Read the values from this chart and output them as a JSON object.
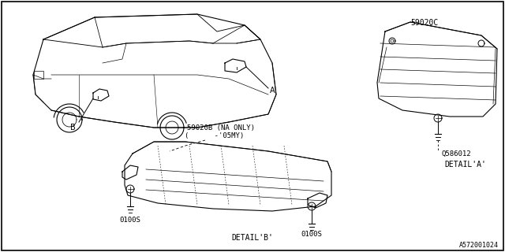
{
  "background_color": "#ffffff",
  "border_color": "#000000",
  "line_color": "#000000",
  "text_color": "#000000",
  "watermark": "A572001024",
  "label_A": "A",
  "label_B": "B",
  "label_59020B_line1": "59020B (NA ONLY)",
  "label_59020B_line2": "(      -'05MY)",
  "label_59020C": "59020C",
  "label_detail_a": "DETAIL'A'",
  "label_Q586012": "Q586012",
  "label_detail_b": "DETAIL'B'",
  "label_0100S": "0100S",
  "fig_width": 6.4,
  "fig_height": 3.2,
  "dpi": 100
}
